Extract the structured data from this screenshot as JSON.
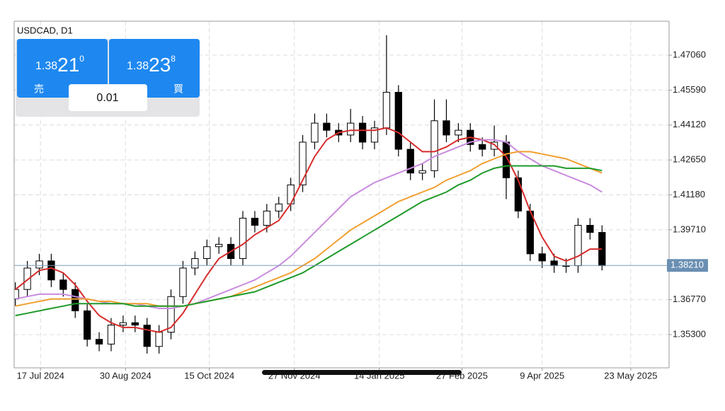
{
  "chart_data": {
    "type": "candlestick",
    "title": "USDCAD, D1",
    "open": [
      1.368,
      1.372,
      1.381,
      1.384,
      1.376,
      1.372,
      1.363,
      1.351,
      1.349,
      1.357,
      1.358,
      1.357,
      1.348,
      1.354,
      1.369,
      1.381,
      1.385,
      1.39,
      1.391,
      1.385,
      1.402,
      1.399,
      1.405,
      1.408,
      1.416,
      1.434,
      1.442,
      1.439,
      1.437,
      1.442,
      1.434,
      1.44,
      1.455,
      1.431,
      1.421,
      1.422,
      1.443,
      1.437,
      1.439,
      1.433,
      1.431,
      1.434,
      1.419,
      1.405,
      1.387,
      1.384,
      1.382,
      1.382,
      1.399,
      1.396
    ],
    "high": [
      1.375,
      1.384,
      1.387,
      1.387,
      1.379,
      1.375,
      1.366,
      1.354,
      1.36,
      1.361,
      1.361,
      1.36,
      1.357,
      1.372,
      1.384,
      1.388,
      1.393,
      1.394,
      1.394,
      1.405,
      1.405,
      1.408,
      1.411,
      1.419,
      1.437,
      1.446,
      1.446,
      1.442,
      1.448,
      1.445,
      1.443,
      1.479,
      1.458,
      1.434,
      1.425,
      1.452,
      1.452,
      1.442,
      1.442,
      1.436,
      1.441,
      1.437,
      1.422,
      1.408,
      1.39,
      1.387,
      1.385,
      1.402,
      1.402,
      1.399
    ],
    "low": [
      1.365,
      1.369,
      1.378,
      1.373,
      1.369,
      1.36,
      1.348,
      1.346,
      1.346,
      1.354,
      1.354,
      1.345,
      1.345,
      1.351,
      1.366,
      1.378,
      1.382,
      1.387,
      1.382,
      1.382,
      1.396,
      1.396,
      1.402,
      1.405,
      1.413,
      1.431,
      1.436,
      1.434,
      1.434,
      1.431,
      1.431,
      1.437,
      1.428,
      1.418,
      1.418,
      1.419,
      1.434,
      1.434,
      1.43,
      1.428,
      1.428,
      1.41,
      1.402,
      1.384,
      1.381,
      1.379,
      1.379,
      1.379,
      1.393,
      1.38
    ],
    "close": [
      1.372,
      1.381,
      1.384,
      1.376,
      1.372,
      1.363,
      1.351,
      1.349,
      1.357,
      1.358,
      1.357,
      1.348,
      1.354,
      1.369,
      1.381,
      1.385,
      1.39,
      1.391,
      1.385,
      1.402,
      1.399,
      1.405,
      1.408,
      1.416,
      1.434,
      1.442,
      1.439,
      1.437,
      1.442,
      1.434,
      1.44,
      1.455,
      1.431,
      1.421,
      1.422,
      1.443,
      1.437,
      1.439,
      1.433,
      1.431,
      1.434,
      1.419,
      1.405,
      1.387,
      1.384,
      1.382,
      1.382,
      1.399,
      1.396,
      1.382
    ],
    "series": [
      {
        "color": "#d62b2b",
        "values": [
          1.372,
          1.376,
          1.38,
          1.381,
          1.379,
          1.374,
          1.367,
          1.361,
          1.358,
          1.356,
          1.356,
          1.355,
          1.354,
          1.356,
          1.362,
          1.37,
          1.378,
          1.385,
          1.388,
          1.391,
          1.395,
          1.398,
          1.401,
          1.408,
          1.418,
          1.428,
          1.435,
          1.438,
          1.439,
          1.439,
          1.439,
          1.44,
          1.438,
          1.434,
          1.43,
          1.43,
          1.432,
          1.435,
          1.436,
          1.435,
          1.433,
          1.428,
          1.418,
          1.405,
          1.394,
          1.386,
          1.384,
          1.386,
          1.389,
          1.389
        ]
      },
      {
        "color": "#c98be0",
        "values": [
          1.368,
          1.369,
          1.37,
          1.37,
          1.37,
          1.369,
          1.368,
          1.367,
          1.366,
          1.366,
          1.366,
          1.365,
          1.364,
          1.364,
          1.365,
          1.366,
          1.368,
          1.37,
          1.372,
          1.374,
          1.376,
          1.379,
          1.382,
          1.386,
          1.391,
          1.396,
          1.401,
          1.406,
          1.411,
          1.414,
          1.417,
          1.419,
          1.421,
          1.423,
          1.425,
          1.428,
          1.43,
          1.432,
          1.434,
          1.435,
          1.435,
          1.434,
          1.43,
          1.427,
          1.424,
          1.422,
          1.42,
          1.418,
          1.416,
          1.413
        ]
      },
      {
        "color": "#f0a030",
        "values": [
          1.365,
          1.366,
          1.367,
          1.368,
          1.368,
          1.368,
          1.368,
          1.367,
          1.367,
          1.366,
          1.366,
          1.366,
          1.365,
          1.365,
          1.365,
          1.366,
          1.367,
          1.368,
          1.369,
          1.371,
          1.373,
          1.375,
          1.377,
          1.379,
          1.382,
          1.385,
          1.389,
          1.393,
          1.397,
          1.4,
          1.403,
          1.406,
          1.409,
          1.411,
          1.413,
          1.415,
          1.418,
          1.42,
          1.422,
          1.425,
          1.427,
          1.429,
          1.43,
          1.43,
          1.429,
          1.428,
          1.427,
          1.425,
          1.423,
          1.421
        ]
      },
      {
        "color": "#1f9a2a",
        "values": [
          1.361,
          1.362,
          1.363,
          1.364,
          1.365,
          1.366,
          1.366,
          1.366,
          1.366,
          1.366,
          1.365,
          1.365,
          1.365,
          1.365,
          1.365,
          1.366,
          1.367,
          1.368,
          1.369,
          1.37,
          1.371,
          1.373,
          1.375,
          1.377,
          1.379,
          1.382,
          1.385,
          1.388,
          1.391,
          1.394,
          1.397,
          1.4,
          1.403,
          1.406,
          1.409,
          1.411,
          1.413,
          1.416,
          1.418,
          1.421,
          1.423,
          1.424,
          1.424,
          1.424,
          1.424,
          1.424,
          1.423,
          1.423,
          1.423,
          1.422
        ]
      }
    ],
    "xlim": [
      -0.1,
      54.6
    ],
    "ylim": [
      1.339,
      1.4849
    ],
    "xticks": [
      {
        "value": 2.1,
        "label": "17 Jul 2024"
      },
      {
        "value": 9.2,
        "label": "30 Aug 2024"
      },
      {
        "value": 16.2,
        "label": "15 Oct 2024"
      },
      {
        "value": 23.3,
        "label": "27 Nov 2024"
      },
      {
        "value": 30.4,
        "label": "14 Jan 2025"
      },
      {
        "value": 37.3,
        "label": "27 Feb 2025"
      },
      {
        "value": 44,
        "label": "9 Apr 2025"
      },
      {
        "value": 51.4,
        "label": "23 May 2025"
      }
    ],
    "yticks": [
      {
        "value": 1.4706,
        "label": "1.47060"
      },
      {
        "value": 1.4559,
        "label": "1.45590"
      },
      {
        "value": 1.4412,
        "label": "1.44120"
      },
      {
        "value": 1.4265,
        "label": "1.42650"
      },
      {
        "value": 1.4118,
        "label": "1.41180"
      },
      {
        "value": 1.3971,
        "label": "1.39710"
      },
      {
        "value": 1.3677,
        "label": "1.36770"
      },
      {
        "value": 1.353,
        "label": "1.35300"
      }
    ],
    "last_price": {
      "value": 1.3821,
      "label": "1.38210"
    },
    "grid": true
  },
  "trade_panel": {
    "sell": {
      "prefix": "1.38",
      "big": "21",
      "sup": "0",
      "label": "売"
    },
    "buy": {
      "prefix": "1.38",
      "big": "23",
      "sup": "8",
      "label": "買"
    },
    "volume": "0.01"
  }
}
